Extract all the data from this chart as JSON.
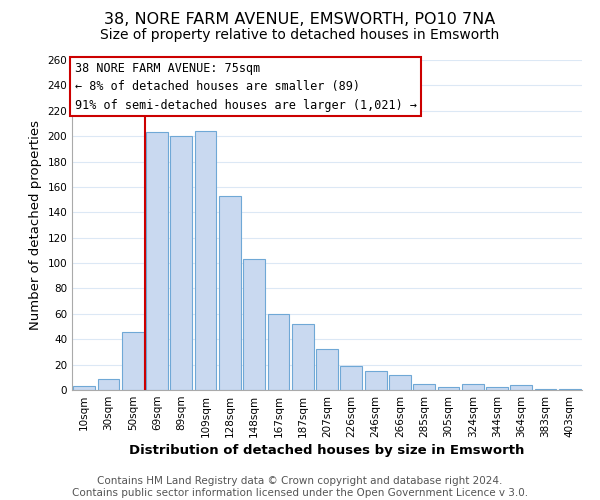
{
  "title": "38, NORE FARM AVENUE, EMSWORTH, PO10 7NA",
  "subtitle": "Size of property relative to detached houses in Emsworth",
  "xlabel": "Distribution of detached houses by size in Emsworth",
  "ylabel": "Number of detached properties",
  "bar_labels": [
    "10sqm",
    "30sqm",
    "50sqm",
    "69sqm",
    "89sqm",
    "109sqm",
    "128sqm",
    "148sqm",
    "167sqm",
    "187sqm",
    "207sqm",
    "226sqm",
    "246sqm",
    "266sqm",
    "285sqm",
    "305sqm",
    "324sqm",
    "344sqm",
    "364sqm",
    "383sqm",
    "403sqm"
  ],
  "bar_values": [
    3,
    9,
    46,
    203,
    200,
    204,
    153,
    103,
    60,
    52,
    32,
    19,
    15,
    12,
    5,
    2,
    5,
    2,
    4,
    1,
    1
  ],
  "bar_color": "#c9d9f0",
  "bar_edge_color": "#6fa8d6",
  "highlight_bar_index": 3,
  "vline_color": "#cc0000",
  "vline_x_index": 3,
  "annotation_lines": [
    "38 NORE FARM AVENUE: 75sqm",
    "← 8% of detached houses are smaller (89)",
    "91% of semi-detached houses are larger (1,021) →"
  ],
  "annotation_box_edge_color": "#cc0000",
  "ylim": [
    0,
    260
  ],
  "yticks": [
    0,
    20,
    40,
    60,
    80,
    100,
    120,
    140,
    160,
    180,
    200,
    220,
    240,
    260
  ],
  "footer_lines": [
    "Contains HM Land Registry data © Crown copyright and database right 2024.",
    "Contains public sector information licensed under the Open Government Licence v 3.0."
  ],
  "background_color": "#ffffff",
  "grid_color": "#dce8f5",
  "title_fontsize": 11.5,
  "subtitle_fontsize": 10,
  "axis_label_fontsize": 9.5,
  "tick_fontsize": 7.5,
  "annotation_fontsize": 8.5,
  "footer_fontsize": 7.5
}
